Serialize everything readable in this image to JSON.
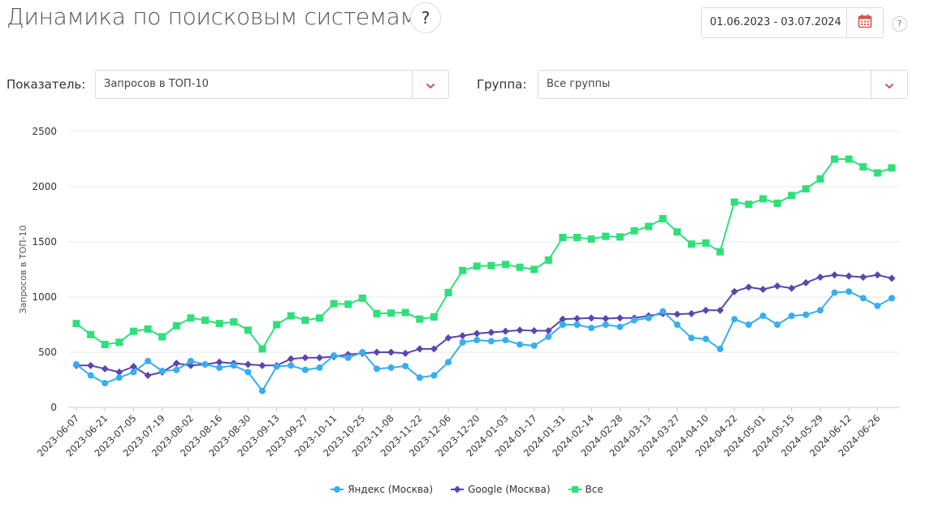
{
  "header": {
    "title": "Динамика по поисковым системам",
    "help_label": "?",
    "date_range": "01.06.2023 - 03.07.2024",
    "help_small_label": "?"
  },
  "filters": {
    "metric_label": "Показатель:",
    "metric_value": "Запросов в ТОП-10",
    "group_label": "Группа:",
    "group_value": "Все группы"
  },
  "colors": {
    "accent": "#d9534f",
    "yandex": "#36aef0",
    "google": "#5b45b0",
    "all": "#2fe07a",
    "grid": "#e8e8e8"
  },
  "chart_data": {
    "type": "line",
    "title": "",
    "ylabel": "Запросов в ТОП-10",
    "xlabel": "",
    "ylim": [
      0,
      2500
    ],
    "yticks": [
      0,
      500,
      1000,
      1500,
      2000,
      2500
    ],
    "grid": true,
    "legend_position": "bottom",
    "x_tick_labels": [
      "2023-06-07",
      "2023-06-21",
      "2023-07-05",
      "2023-07-19",
      "2023-08-02",
      "2023-08-16",
      "2023-08-30",
      "2023-09-13",
      "2023-09-27",
      "2023-10-11",
      "2023-10-25",
      "2023-11-08",
      "2023-11-22",
      "2023-12-06",
      "2023-12-20",
      "2024-01-03",
      "2024-01-17",
      "2024-01-31",
      "2024-02-14",
      "2024-02-28",
      "2024-03-13",
      "2024-03-27",
      "2024-04-10",
      "2024-04-22",
      "2024-05-01",
      "2024-05-15",
      "2024-05-29",
      "2024-06-12",
      "2024-06-26"
    ],
    "series": [
      {
        "name": "Яндекс (Москва)",
        "marker": "circle",
        "values": [
          390,
          290,
          220,
          270,
          320,
          420,
          330,
          340,
          420,
          390,
          360,
          380,
          320,
          150,
          370,
          380,
          340,
          360,
          470,
          450,
          500,
          350,
          360,
          375,
          270,
          290,
          410,
          590,
          610,
          600,
          610,
          570,
          560,
          640,
          750,
          750,
          720,
          750,
          730,
          790,
          810,
          870,
          750,
          630,
          620,
          530,
          800,
          750,
          830,
          750,
          830,
          840,
          880,
          1040,
          1050,
          990,
          920,
          990
        ]
      },
      {
        "name": "Google (Москва)",
        "marker": "diamond",
        "values": [
          380,
          380,
          350,
          320,
          370,
          290,
          320,
          400,
          380,
          390,
          410,
          400,
          390,
          380,
          380,
          440,
          450,
          450,
          460,
          480,
          490,
          500,
          500,
          490,
          530,
          530,
          630,
          650,
          670,
          680,
          690,
          700,
          695,
          695,
          800,
          805,
          810,
          805,
          810,
          810,
          830,
          850,
          845,
          850,
          880,
          880,
          1050,
          1090,
          1070,
          1100,
          1080,
          1130,
          1180,
          1200,
          1190,
          1180,
          1200,
          1170
        ]
      },
      {
        "name": "Все",
        "marker": "square",
        "values": [
          760,
          660,
          570,
          590,
          690,
          710,
          640,
          740,
          810,
          790,
          760,
          775,
          700,
          530,
          750,
          830,
          790,
          810,
          940,
          935,
          990,
          850,
          855,
          860,
          800,
          820,
          1040,
          1240,
          1280,
          1285,
          1295,
          1270,
          1250,
          1335,
          1540,
          1540,
          1525,
          1550,
          1545,
          1600,
          1640,
          1710,
          1590,
          1480,
          1490,
          1410,
          1860,
          1840,
          1890,
          1850,
          1920,
          1980,
          2070,
          2250,
          2250,
          2180,
          2125,
          2170
        ]
      }
    ]
  }
}
